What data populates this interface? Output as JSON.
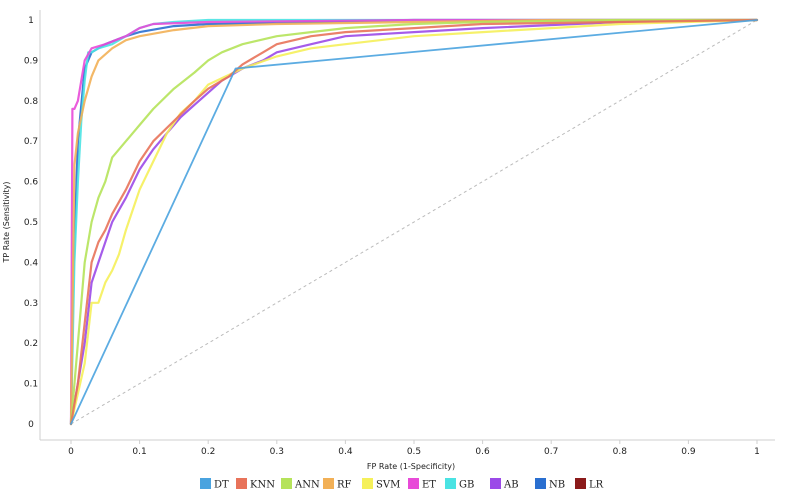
{
  "chart_data": {
    "type": "line",
    "title": "",
    "xlabel": "FP Rate (1-Specificity)",
    "ylabel": "TP Rate (Sensitivity)",
    "xlim": [
      0,
      1
    ],
    "ylim": [
      0,
      1
    ],
    "x_ticks": [
      "0",
      "0.1",
      "0.2",
      "0.3",
      "0.4",
      "0.5",
      "0.6",
      "0.7",
      "0.8",
      "0.9",
      "1"
    ],
    "y_ticks": [
      "0",
      "0.1",
      "0.2",
      "0.3",
      "0.4",
      "0.5",
      "0.6",
      "0.7",
      "0.8",
      "0.9",
      "1"
    ],
    "grid": false,
    "legend_position": "bottom",
    "reference_line": {
      "x": [
        0,
        1
      ],
      "y": [
        0,
        1
      ],
      "color": "#bbbbbb",
      "style": "dashed"
    },
    "series": [
      {
        "name": "DT",
        "color": "#4aa3df",
        "x": [
          0,
          0.24,
          1
        ],
        "y": [
          0,
          0.88,
          1
        ]
      },
      {
        "name": "KNN",
        "color": "#e8735a",
        "x": [
          0,
          0.01,
          0.02,
          0.03,
          0.04,
          0.05,
          0.06,
          0.08,
          0.1,
          0.12,
          0.15,
          0.18,
          0.2,
          0.23,
          0.25,
          0.28,
          0.3,
          0.35,
          0.4,
          0.5,
          0.6,
          0.8,
          1
        ],
        "y": [
          0,
          0.1,
          0.25,
          0.4,
          0.45,
          0.48,
          0.52,
          0.58,
          0.65,
          0.7,
          0.75,
          0.8,
          0.83,
          0.86,
          0.89,
          0.92,
          0.94,
          0.96,
          0.97,
          0.98,
          0.99,
          0.995,
          1
        ]
      },
      {
        "name": "ANN",
        "color": "#b5e35a",
        "x": [
          0,
          0.01,
          0.02,
          0.03,
          0.04,
          0.05,
          0.06,
          0.08,
          0.1,
          0.12,
          0.15,
          0.18,
          0.2,
          0.22,
          0.25,
          0.3,
          0.35,
          0.4,
          0.5,
          0.6,
          0.8,
          1
        ],
        "y": [
          0,
          0.2,
          0.4,
          0.5,
          0.56,
          0.6,
          0.66,
          0.7,
          0.74,
          0.78,
          0.83,
          0.87,
          0.9,
          0.92,
          0.94,
          0.96,
          0.97,
          0.98,
          0.99,
          0.995,
          1,
          1
        ]
      },
      {
        "name": "RF",
        "color": "#f2b056",
        "x": [
          0,
          0.005,
          0.01,
          0.02,
          0.03,
          0.04,
          0.06,
          0.08,
          0.1,
          0.15,
          0.2,
          0.3,
          0.5,
          0.7,
          1
        ],
        "y": [
          0,
          0.64,
          0.72,
          0.8,
          0.86,
          0.9,
          0.93,
          0.95,
          0.96,
          0.975,
          0.985,
          0.99,
          0.995,
          1,
          1
        ]
      },
      {
        "name": "SVM",
        "color": "#f5f05a",
        "x": [
          0,
          0.02,
          0.03,
          0.04,
          0.05,
          0.06,
          0.07,
          0.08,
          0.1,
          0.12,
          0.14,
          0.16,
          0.18,
          0.2,
          0.25,
          0.3,
          0.35,
          0.4,
          0.5,
          0.6,
          0.7,
          0.8,
          1
        ],
        "y": [
          0,
          0.15,
          0.3,
          0.3,
          0.35,
          0.38,
          0.42,
          0.48,
          0.58,
          0.65,
          0.72,
          0.77,
          0.8,
          0.84,
          0.88,
          0.91,
          0.93,
          0.94,
          0.96,
          0.97,
          0.98,
          0.99,
          1
        ]
      },
      {
        "name": "ET",
        "color": "#e84ad8",
        "x": [
          0,
          0.002,
          0.005,
          0.01,
          0.015,
          0.02,
          0.03,
          0.05,
          0.08,
          0.1,
          0.12,
          0.2,
          0.5,
          1
        ],
        "y": [
          0,
          0.78,
          0.78,
          0.8,
          0.85,
          0.9,
          0.93,
          0.94,
          0.96,
          0.98,
          0.99,
          0.995,
          1,
          1
        ]
      },
      {
        "name": "GB",
        "color": "#4ae3e3",
        "x": [
          0,
          0.005,
          0.01,
          0.015,
          0.02,
          0.025,
          0.03,
          0.04,
          0.06,
          0.08,
          0.1,
          0.12,
          0.15,
          0.2,
          1
        ],
        "y": [
          0,
          0.4,
          0.6,
          0.75,
          0.85,
          0.92,
          0.92,
          0.93,
          0.94,
          0.96,
          0.98,
          0.99,
          0.995,
          1,
          1
        ]
      },
      {
        "name": "AB",
        "color": "#9b4ae8",
        "x": [
          0,
          0.02,
          0.03,
          0.04,
          0.05,
          0.06,
          0.07,
          0.08,
          0.1,
          0.12,
          0.14,
          0.16,
          0.18,
          0.2,
          0.22,
          0.25,
          0.28,
          0.3,
          0.35,
          0.4,
          0.5,
          0.6,
          0.8,
          1
        ],
        "y": [
          0,
          0.2,
          0.35,
          0.4,
          0.45,
          0.5,
          0.53,
          0.56,
          0.63,
          0.68,
          0.72,
          0.76,
          0.79,
          0.82,
          0.85,
          0.88,
          0.9,
          0.92,
          0.94,
          0.96,
          0.97,
          0.98,
          0.995,
          1
        ]
      },
      {
        "name": "NB",
        "color": "#2a6fd0",
        "x": [
          0,
          0.003,
          0.01,
          0.02,
          0.03,
          0.05,
          0.08,
          0.1,
          0.15,
          0.2,
          0.5,
          1
        ],
        "y": [
          0,
          0.35,
          0.7,
          0.88,
          0.92,
          0.94,
          0.96,
          0.97,
          0.985,
          0.99,
          1,
          1
        ]
      },
      {
        "name": "LR",
        "color": "#8b1a1a",
        "x": [],
        "y": []
      }
    ]
  }
}
